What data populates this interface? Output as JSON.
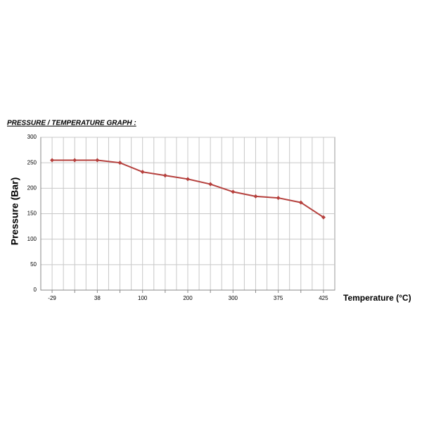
{
  "chart_data": {
    "type": "line",
    "title": "PRESSURE / TEMPERATURE GRAPH :",
    "x_label": "Temperature (°C)",
    "y_label": "Pressure (Bar)",
    "categories": [
      "-29",
      null,
      "38",
      null,
      "100",
      null,
      "200",
      null,
      "300",
      null,
      "375",
      null,
      "425"
    ],
    "series": [
      {
        "name": "Pressure",
        "color": "#b5403d",
        "values": [
          255,
          255,
          255,
          250,
          232,
          225,
          218,
          208,
          193,
          184,
          181,
          172,
          143
        ]
      }
    ],
    "ylim": [
      0,
      300
    ],
    "yticks": [
      0,
      50,
      100,
      150,
      200,
      250,
      300
    ],
    "grid": true
  }
}
